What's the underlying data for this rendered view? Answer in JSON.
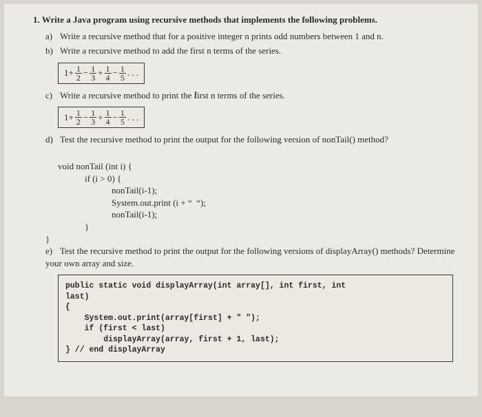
{
  "background_color": "#d8d5ce",
  "page_color": "#eceae4",
  "text_color": "#2a2a28",
  "font_family": "Times New Roman",
  "question": {
    "number": "1.",
    "title": "Write a Java program using recursive methods that implements the following problems."
  },
  "parts": {
    "a": {
      "label": "a)",
      "text": "Write a recursive method that for a positive integer n prints odd numbers between 1 and n."
    },
    "b": {
      "label": "b)",
      "text": "Write a recursive method to add the first n terms of the series."
    },
    "c": {
      "label": "c)",
      "text_before": "Write a recursive method to print the ",
      "text_after": "first n terms of the series."
    },
    "d": {
      "label": "d)",
      "text": "Test the recursive method to print the output for the following version of nonTail() method?",
      "code": {
        "l1": "void nonTail (int i) {",
        "l2": "            if (i > 0) {",
        "l3": "                        nonTail(i-1);",
        "l4": "                        System.out.print (i + “  “);",
        "l5": "                        nonTail(i-1);",
        "l6": "            }",
        "l7": "}"
      }
    },
    "e": {
      "label": "e)",
      "text": "Test the recursive method to print the output for the following versions of displayArray() methods? Determine your own array and size.",
      "code": "public static void displayArray(int array[], int first, int\nlast)\n{\n    System.out.print(array[first] + \" \");\n    if (first < last)\n        displayArray(array, first + 1, last);\n} // end displayArray"
    }
  },
  "series": {
    "lead": "1+",
    "terms": [
      {
        "num": "1",
        "den": "2",
        "op_after": "−"
      },
      {
        "num": "1",
        "den": "3",
        "op_after": "+"
      },
      {
        "num": "1",
        "den": "4",
        "op_after": "−"
      },
      {
        "num": "1",
        "den": "5",
        "op_after": " . . ."
      }
    ]
  }
}
